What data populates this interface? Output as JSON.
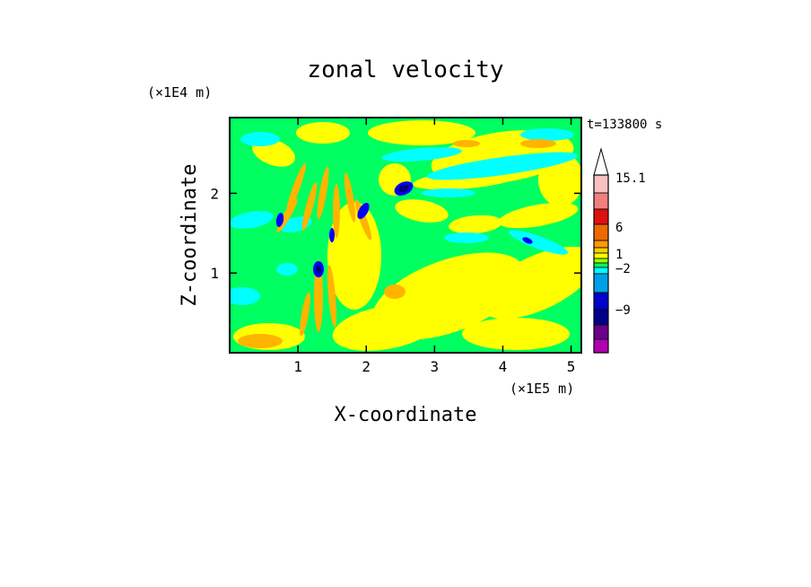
{
  "chart_data": {
    "type": "heatmap",
    "title": "zonal velocity",
    "xlabel": "X-coordinate",
    "ylabel": "Z-coordinate",
    "x_unit": "(×1E5 m)",
    "y_unit": "(×1E4 m)",
    "time_label": "t=133800 s",
    "xlim": [
      0,
      5.15
    ],
    "ylim": [
      0,
      2.95
    ],
    "x_ticks": [
      {
        "v": 1,
        "label": "1"
      },
      {
        "v": 2,
        "label": "2"
      },
      {
        "v": 3,
        "label": "3"
      },
      {
        "v": 4,
        "label": "4"
      },
      {
        "v": 5,
        "label": "5"
      }
    ],
    "y_ticks": [
      {
        "v": 1,
        "label": "1"
      },
      {
        "v": 2,
        "label": "2"
      }
    ],
    "colorbar": {
      "levels_top_to_bottom": [
        "#ff00cc00",
        "#f9c0c0",
        "#f08080",
        "#e01010",
        "#ee6a00",
        "#ff9a00",
        "#f9d000",
        "#ffff00",
        "#9cff00",
        "#00ff60",
        "#00ffff",
        "#00a0e8",
        "#0000cc",
        "#00008a",
        "#6a008a",
        "#b000b0",
        "#ff00cc"
      ],
      "labels": [
        {
          "v": 15.1,
          "label": "15.1"
        },
        {
          "v": 6,
          "label": "6"
        },
        {
          "v": 1,
          "label": "1"
        },
        {
          "v": -2,
          "label": "−2"
        },
        {
          "v": -9,
          "label": "−9"
        }
      ]
    },
    "field": {
      "background_color": "#00ff60",
      "note_levels": "dominant values near 0 (green/yellow), bands of cyan (~-1), orange (~+2), blue extremes (~-6) near x=1.3-2.5, z=1-2.1"
    },
    "palette": {
      "green": "#00ff60",
      "yellow": "#ffff00",
      "cyan": "#00ffff",
      "orange": "#ffb400",
      "blue": "#0000ff",
      "navy": "#000080"
    }
  }
}
